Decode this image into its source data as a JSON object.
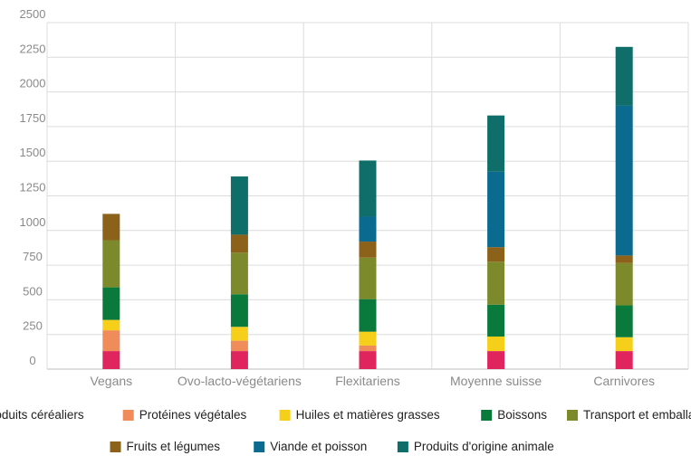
{
  "chart_data": {
    "type": "bar",
    "stacked": true,
    "categories": [
      "Vegans",
      "Ovo-lacto-végétariens",
      "Flexitariens",
      "Moyenne suisse",
      "Carnivores"
    ],
    "ylim": [
      0,
      2500
    ],
    "yticks": [
      0,
      250,
      500,
      750,
      1000,
      1250,
      1500,
      1750,
      2000,
      2250,
      2500
    ],
    "ytick_labels": [
      "0",
      "250",
      "500",
      "750",
      "1000",
      "1250",
      "1500",
      "1750",
      "2000",
      "2250",
      "2500"
    ],
    "grid": true,
    "legend_position": "bottom",
    "series": [
      {
        "name": "Produits céréaliers",
        "color": "#e0245e",
        "values": [
          130,
          130,
          130,
          130,
          130
        ]
      },
      {
        "name": "Protéines végétales",
        "color": "#f08c5a",
        "values": [
          150,
          75,
          40,
          0,
          0
        ]
      },
      {
        "name": "Huiles et matières grasses",
        "color": "#f5cf1a",
        "values": [
          75,
          100,
          100,
          105,
          100
        ]
      },
      {
        "name": "Boissons",
        "color": "#0a7a3c",
        "values": [
          235,
          235,
          235,
          230,
          230
        ]
      },
      {
        "name": "Transport et emballage",
        "color": "#7c8a2b",
        "values": [
          340,
          300,
          300,
          310,
          305
        ]
      },
      {
        "name": "Fruits et légumes",
        "color": "#8c6119",
        "values": [
          190,
          130,
          115,
          105,
          55
        ]
      },
      {
        "name": "Viande et poisson",
        "color": "#0a6a90",
        "values": [
          0,
          0,
          180,
          545,
          1080
        ]
      },
      {
        "name": "Produits d'origine animale",
        "color": "#0f6e6a",
        "values": [
          0,
          420,
          405,
          405,
          425
        ]
      }
    ]
  }
}
